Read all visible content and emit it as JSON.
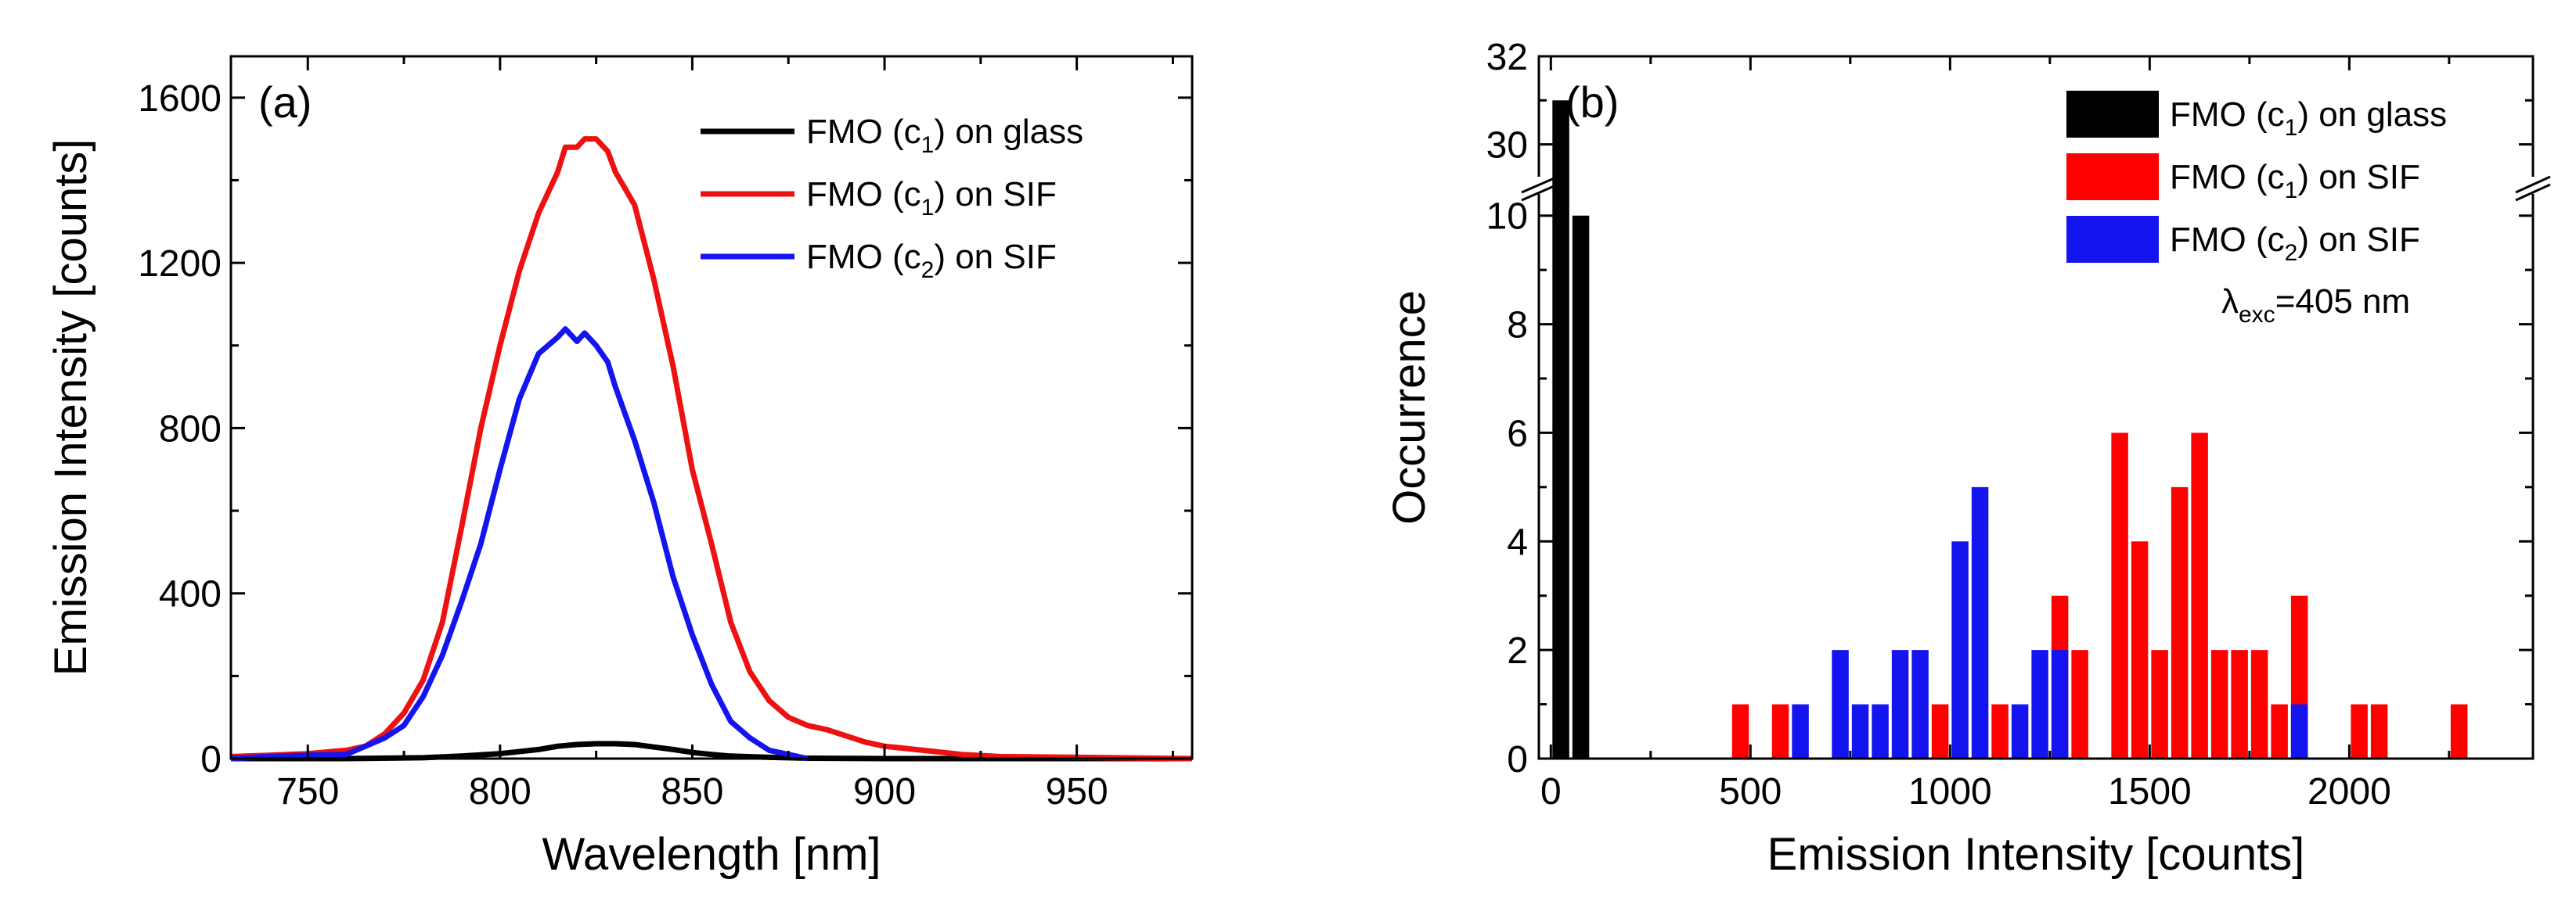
{
  "chart_data": [
    {
      "panel": "(a)",
      "type": "line",
      "xlabel": "Wavelength [nm]",
      "ylabel": "Emission Intensity [counts]",
      "xlim": [
        730,
        980
      ],
      "ylim": [
        0,
        1700
      ],
      "xticks": [
        750,
        800,
        850,
        900,
        950
      ],
      "yticks": [
        0,
        400,
        800,
        1200,
        1600
      ],
      "legend_position": "top-right",
      "series": [
        {
          "name": "FMO (c1) on glass",
          "name_main": "FMO (c",
          "name_sub": "1",
          "name_tail": ") on glass",
          "color": "#000000",
          "x": [
            730,
            760,
            780,
            790,
            800,
            810,
            815,
            820,
            825,
            830,
            835,
            840,
            845,
            850,
            855,
            860,
            870,
            880,
            900,
            980
          ],
          "y": [
            0,
            0,
            2,
            6,
            12,
            22,
            30,
            34,
            36,
            36,
            34,
            28,
            22,
            15,
            10,
            6,
            3,
            1,
            0,
            0
          ]
        },
        {
          "name": "FMO (c1) on SIF",
          "name_main": "FMO (c",
          "name_sub": "1",
          "name_tail": ") on SIF",
          "color": "#ee1111",
          "x": [
            730,
            740,
            750,
            760,
            765,
            770,
            775,
            780,
            785,
            790,
            795,
            800,
            805,
            810,
            815,
            817,
            820,
            822,
            825,
            828,
            830,
            835,
            840,
            845,
            850,
            855,
            860,
            865,
            870,
            875,
            880,
            885,
            890,
            895,
            900,
            910,
            920,
            930,
            950,
            980
          ],
          "y": [
            5,
            8,
            12,
            20,
            30,
            60,
            110,
            190,
            330,
            560,
            800,
            1000,
            1180,
            1320,
            1420,
            1480,
            1480,
            1500,
            1500,
            1470,
            1420,
            1340,
            1160,
            950,
            700,
            520,
            330,
            210,
            140,
            100,
            80,
            70,
            55,
            40,
            30,
            20,
            10,
            5,
            3,
            0
          ]
        },
        {
          "name": "FMO (c2) on SIF",
          "name_main": "FMO (c",
          "name_sub": "2",
          "name_tail": ") on SIF",
          "color": "#1414ee",
          "x": [
            730,
            740,
            750,
            760,
            765,
            770,
            775,
            780,
            785,
            790,
            795,
            800,
            805,
            810,
            815,
            817,
            820,
            822,
            825,
            828,
            830,
            835,
            840,
            845,
            850,
            855,
            860,
            865,
            870,
            875,
            880
          ],
          "y": [
            0,
            5,
            8,
            10,
            30,
            50,
            80,
            150,
            250,
            380,
            520,
            700,
            870,
            980,
            1020,
            1040,
            1010,
            1030,
            1000,
            960,
            900,
            770,
            620,
            440,
            300,
            180,
            90,
            50,
            20,
            10,
            0
          ]
        }
      ]
    },
    {
      "panel": "(b)",
      "type": "bar",
      "xlabel": "Emission Intensity [counts]",
      "ylabel": "Occurrence",
      "xlim": [
        -30,
        2460
      ],
      "ylim_lower": [
        0,
        10.5
      ],
      "ylim_upper": [
        29,
        32
      ],
      "xticks": [
        0,
        500,
        1000,
        1500,
        2000
      ],
      "yticks": [
        0,
        2,
        4,
        6,
        8,
        10,
        30,
        32
      ],
      "bin_width": 50,
      "legend_position": "top-right",
      "annotation": {
        "symbol": "λ",
        "sub": "exc",
        "tail": "=405 nm"
      },
      "series": [
        {
          "name": "FMO (c1) on glass",
          "name_main": "FMO (c",
          "name_sub": "1",
          "name_tail": ") on glass",
          "color": "#000000",
          "x": [
            25,
            75
          ],
          "values": [
            31,
            10
          ]
        },
        {
          "name": "FMO (c1) on SIF",
          "name_main": "FMO (c",
          "name_sub": "1",
          "name_tail": ") on SIF",
          "color": "#ff0000",
          "x": [
            475,
            575,
            975,
            1125,
            1275,
            1325,
            1425,
            1475,
            1525,
            1575,
            1625,
            1675,
            1725,
            1775,
            1825,
            1875,
            2025,
            2075,
            2275
          ],
          "values": [
            1,
            1,
            1,
            1,
            3,
            2,
            6,
            4,
            2,
            5,
            6,
            2,
            2,
            2,
            1,
            3,
            1,
            1,
            1
          ]
        },
        {
          "name": "FMO (c2) on SIF",
          "name_main": "FMO (c",
          "name_sub": "2",
          "name_tail": ") on SIF",
          "color": "#1414ee",
          "x": [
            625,
            725,
            775,
            825,
            875,
            925,
            1025,
            1075,
            1175,
            1225,
            1275,
            1875
          ],
          "values": [
            1,
            2,
            1,
            1,
            2,
            2,
            4,
            5,
            1,
            2,
            2,
            1
          ]
        }
      ]
    }
  ]
}
